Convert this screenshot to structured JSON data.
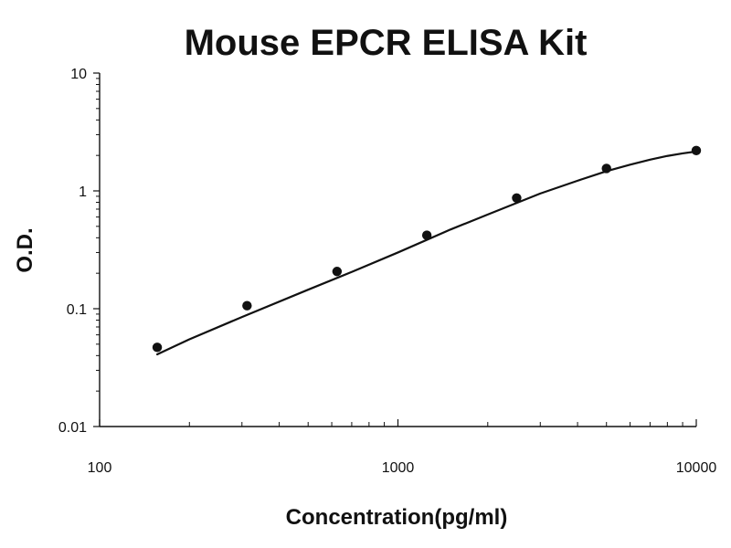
{
  "chart_data": {
    "type": "scatter",
    "title": "Mouse EPCR ELISA Kit",
    "xlabel": "Concentration(pg/ml)",
    "ylabel": "O.D.",
    "x_scale": "log",
    "y_scale": "log",
    "xlim": [
      100,
      10000
    ],
    "ylim": [
      0.01,
      10
    ],
    "x_ticks": [
      {
        "value": 100,
        "label": "100"
      },
      {
        "value": 1000,
        "label": "1000"
      },
      {
        "value": 10000,
        "label": "10000"
      }
    ],
    "y_ticks": [
      {
        "value": 0.01,
        "label": "0.01"
      },
      {
        "value": 0.1,
        "label": "0.1"
      },
      {
        "value": 1,
        "label": "1"
      },
      {
        "value": 10,
        "label": "10"
      }
    ],
    "grid": false,
    "legend": "none",
    "colors": {
      "marker": "#111111",
      "curve": "#111111",
      "axis": "#111111"
    },
    "points": [
      {
        "x": 156,
        "y": 0.047
      },
      {
        "x": 312,
        "y": 0.106
      },
      {
        "x": 625,
        "y": 0.207
      },
      {
        "x": 1250,
        "y": 0.42
      },
      {
        "x": 2500,
        "y": 0.87
      },
      {
        "x": 5000,
        "y": 1.55
      },
      {
        "x": 10000,
        "y": 2.2
      }
    ],
    "fit_curve": [
      {
        "x": 156,
        "y": 0.041
      },
      {
        "x": 200,
        "y": 0.055
      },
      {
        "x": 300,
        "y": 0.085
      },
      {
        "x": 500,
        "y": 0.145
      },
      {
        "x": 700,
        "y": 0.205
      },
      {
        "x": 1000,
        "y": 0.3
      },
      {
        "x": 1500,
        "y": 0.47
      },
      {
        "x": 2000,
        "y": 0.63
      },
      {
        "x": 3000,
        "y": 0.95
      },
      {
        "x": 4000,
        "y": 1.22
      },
      {
        "x": 5000,
        "y": 1.47
      },
      {
        "x": 6000,
        "y": 1.67
      },
      {
        "x": 7000,
        "y": 1.84
      },
      {
        "x": 8000,
        "y": 1.98
      },
      {
        "x": 9000,
        "y": 2.08
      },
      {
        "x": 10000,
        "y": 2.16
      }
    ]
  }
}
